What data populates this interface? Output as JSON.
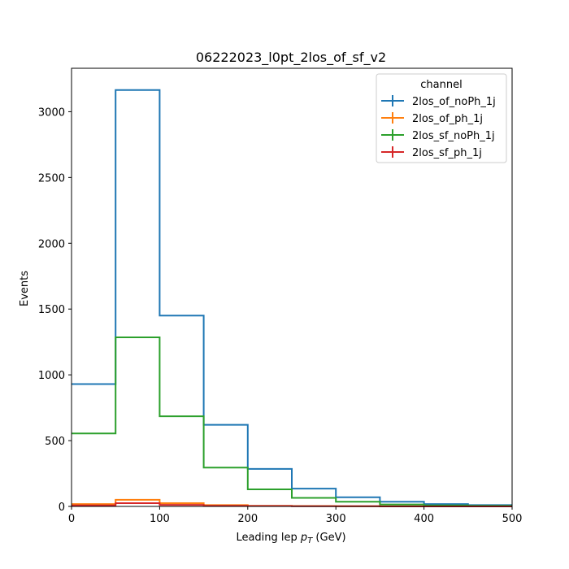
{
  "chart_data": {
    "type": "step",
    "title": "06222023_l0pt_2los_of_sf_v2",
    "xlabel_main": "Leading lep ",
    "xlabel_sym": "p",
    "xlabel_sub": "T",
    "xlabel_unit": " (GeV)",
    "ylabel": "Events",
    "xlim": [
      0,
      500
    ],
    "ylim": [
      0,
      3330
    ],
    "bin_edges": [
      0,
      50,
      100,
      150,
      200,
      250,
      300,
      350,
      400,
      450,
      500
    ],
    "xticks": [
      "0",
      "100",
      "200",
      "300",
      "400",
      "500"
    ],
    "yticks": [
      "0",
      "500",
      "1000",
      "1500",
      "2000",
      "2500",
      "3000"
    ],
    "legend_title": "channel",
    "legend_position": "top-right",
    "series": [
      {
        "name": "2los_of_noPh_1j",
        "color": "#1f77b4",
        "values": [
          930,
          3165,
          1450,
          620,
          285,
          135,
          70,
          35,
          18,
          10
        ]
      },
      {
        "name": "2los_of_ph_1j",
        "color": "#ff7f0e",
        "values": [
          18,
          50,
          25,
          10,
          5,
          3,
          2,
          1,
          1,
          0
        ]
      },
      {
        "name": "2los_sf_noPh_1j",
        "color": "#2ca02c",
        "values": [
          555,
          1285,
          685,
          295,
          130,
          65,
          35,
          15,
          8,
          5
        ]
      },
      {
        "name": "2los_sf_ph_1j",
        "color": "#d62728",
        "values": [
          8,
          25,
          12,
          5,
          3,
          2,
          1,
          0,
          0,
          0
        ]
      }
    ]
  }
}
